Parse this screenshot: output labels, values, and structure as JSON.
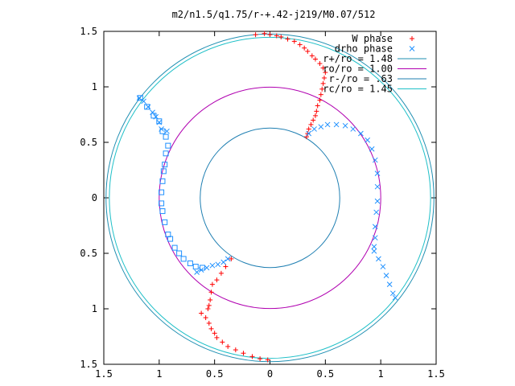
{
  "chart_data": {
    "type": "scatter",
    "title": "m2/n1.5/q1.75/r-+.42-j219/M0.07/512",
    "xlabel": "",
    "ylabel": "",
    "xlim": [
      -1.5,
      1.5
    ],
    "ylim": [
      -1.5,
      1.5
    ],
    "x_ticks": [
      -1.5,
      -1,
      -0.5,
      0,
      0.5,
      1,
      1.5
    ],
    "x_tick_labels": [
      "1.5",
      "1",
      "0.5",
      "0",
      "0.5",
      "1",
      "1.5"
    ],
    "y_ticks": [
      1.5,
      1,
      0.5,
      0,
      -0.5,
      -1,
      -1.5
    ],
    "y_tick_labels": [
      "1.5",
      "1",
      "0.5",
      "0",
      "0.5",
      "1",
      "1.5"
    ],
    "grid": false,
    "legend_position": "top-right",
    "series": [
      {
        "name": "W phase",
        "marker": "plus",
        "color": "#ff0000",
        "points": [
          [
            -0.13,
            1.47
          ],
          [
            -0.05,
            1.48
          ],
          [
            0.0,
            1.47
          ],
          [
            0.06,
            1.46
          ],
          [
            0.1,
            1.45
          ],
          [
            0.16,
            1.43
          ],
          [
            0.22,
            1.41
          ],
          [
            0.27,
            1.38
          ],
          [
            0.31,
            1.35
          ],
          [
            0.34,
            1.32
          ],
          [
            0.38,
            1.28
          ],
          [
            0.41,
            1.25
          ],
          [
            0.45,
            1.21
          ],
          [
            0.48,
            1.17
          ],
          [
            0.5,
            1.13
          ],
          [
            0.49,
            1.08
          ],
          [
            0.48,
            1.03
          ],
          [
            0.47,
            0.98
          ],
          [
            0.46,
            0.93
          ],
          [
            0.45,
            0.88
          ],
          [
            0.43,
            0.83
          ],
          [
            0.42,
            0.78
          ],
          [
            0.41,
            0.74
          ],
          [
            0.39,
            0.7
          ],
          [
            0.37,
            0.66
          ],
          [
            0.35,
            0.62
          ],
          [
            0.34,
            0.58
          ],
          [
            0.33,
            0.55
          ],
          [
            -0.35,
            -0.55
          ],
          [
            -0.4,
            -0.62
          ],
          [
            -0.44,
            -0.68
          ],
          [
            -0.48,
            -0.74
          ],
          [
            -0.52,
            -0.78
          ],
          [
            -0.53,
            -0.85
          ],
          [
            -0.54,
            -0.92
          ],
          [
            -0.55,
            -0.97
          ],
          [
            -0.56,
            -1.0
          ],
          [
            -0.62,
            -1.04
          ],
          [
            -0.58,
            -1.08
          ],
          [
            -0.55,
            -1.13
          ],
          [
            -0.53,
            -1.18
          ],
          [
            -0.5,
            -1.22
          ],
          [
            -0.48,
            -1.26
          ],
          [
            -0.43,
            -1.3
          ],
          [
            -0.38,
            -1.34
          ],
          [
            -0.31,
            -1.37
          ],
          [
            -0.24,
            -1.4
          ],
          [
            -0.16,
            -1.43
          ],
          [
            -0.09,
            -1.45
          ],
          [
            -0.02,
            -1.46
          ]
        ]
      },
      {
        "name": "drho phase",
        "marker": "cross",
        "color": "#1e90ff",
        "points": [
          [
            0.35,
            0.58
          ],
          [
            0.4,
            0.62
          ],
          [
            0.46,
            0.64
          ],
          [
            0.52,
            0.66
          ],
          [
            0.6,
            0.66
          ],
          [
            0.68,
            0.65
          ],
          [
            0.75,
            0.62
          ],
          [
            0.82,
            0.58
          ],
          [
            0.88,
            0.52
          ],
          [
            0.92,
            0.44
          ],
          [
            0.95,
            0.34
          ],
          [
            0.97,
            0.22
          ],
          [
            0.97,
            0.1
          ],
          [
            0.97,
            -0.03
          ],
          [
            0.96,
            -0.13
          ],
          [
            0.95,
            -0.26
          ],
          [
            0.95,
            -0.36
          ],
          [
            0.94,
            -0.44
          ],
          [
            0.94,
            -0.48
          ],
          [
            0.98,
            -0.55
          ],
          [
            1.02,
            -0.62
          ],
          [
            1.05,
            -0.7
          ],
          [
            1.08,
            -0.78
          ],
          [
            1.11,
            -0.86
          ],
          [
            1.13,
            -0.9
          ],
          [
            -1.18,
            0.9
          ],
          [
            -1.14,
            0.87
          ],
          [
            -1.1,
            0.82
          ],
          [
            -1.06,
            0.77
          ],
          [
            -1.03,
            0.73
          ],
          [
            -1.0,
            0.68
          ],
          [
            -0.98,
            0.62
          ],
          [
            -0.93,
            0.6
          ],
          [
            -0.38,
            -0.55
          ],
          [
            -0.42,
            -0.58
          ],
          [
            -0.47,
            -0.6
          ],
          [
            -0.52,
            -0.61
          ],
          [
            -0.57,
            -0.63
          ],
          [
            -0.62,
            -0.65
          ],
          [
            -0.66,
            -0.67
          ]
        ]
      },
      {
        "name": "",
        "marker": "square",
        "color": "#1e90ff",
        "points": [
          [
            -1.17,
            0.9
          ],
          [
            -1.11,
            0.82
          ],
          [
            -1.05,
            0.74
          ],
          [
            -1.0,
            0.69
          ],
          [
            -0.97,
            0.6
          ],
          [
            -0.94,
            0.55
          ],
          [
            -0.92,
            0.47
          ],
          [
            -0.94,
            0.4
          ],
          [
            -0.95,
            0.3
          ],
          [
            -0.96,
            0.24
          ],
          [
            -0.97,
            0.15
          ],
          [
            -0.98,
            0.05
          ],
          [
            -0.98,
            -0.05
          ],
          [
            -0.97,
            -0.12
          ],
          [
            -0.95,
            -0.22
          ],
          [
            -0.92,
            -0.33
          ],
          [
            -0.9,
            -0.37
          ],
          [
            -0.86,
            -0.45
          ],
          [
            -0.82,
            -0.5
          ],
          [
            -0.78,
            -0.55
          ],
          [
            -0.72,
            -0.59
          ],
          [
            -0.67,
            -0.62
          ],
          [
            -0.61,
            -0.63
          ]
        ]
      }
    ],
    "circles": [
      {
        "name": "r+/ro = 1.48",
        "radius": 1.48,
        "color": "#1f8fb2"
      },
      {
        "name": "ro/ro = 1.00",
        "radius": 1.0,
        "color": "#b000b0"
      },
      {
        "name": "r-/ro = .63",
        "radius": 0.63,
        "color": "#1f7fb2"
      },
      {
        "name": "rc/ro = 1.45",
        "radius": 1.45,
        "color": "#20c0c8"
      }
    ]
  }
}
